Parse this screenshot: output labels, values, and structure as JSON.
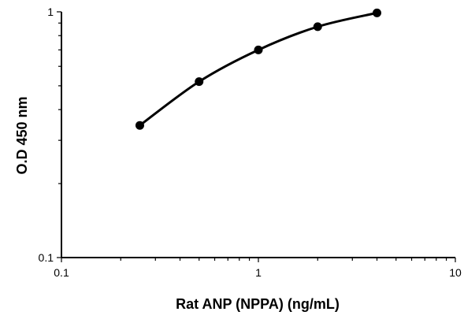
{
  "chart_data": {
    "type": "line",
    "title": "",
    "xlabel": "Rat ANP (NPPA) (ng/mL)",
    "ylabel": "O.D 450 nm",
    "xscale": "log",
    "yscale": "log",
    "xlim": [
      0.1,
      10
    ],
    "ylim": [
      0.1,
      1
    ],
    "x_ticks": [
      {
        "value": 0.1,
        "label": "0.1"
      },
      {
        "value": 1,
        "label": "1"
      },
      {
        "value": 10,
        "label": "10"
      }
    ],
    "y_ticks": [
      {
        "value": 0.1,
        "label": "0.1"
      },
      {
        "value": 1,
        "label": "1"
      }
    ],
    "grid": false,
    "legend": "none",
    "series": [
      {
        "x": [
          0.25,
          0.5,
          1,
          2,
          4
        ],
        "y": [
          0.345,
          0.52,
          0.7,
          0.87,
          0.99
        ],
        "color": "#000000",
        "marker": "circle",
        "smooth": true
      }
    ]
  }
}
